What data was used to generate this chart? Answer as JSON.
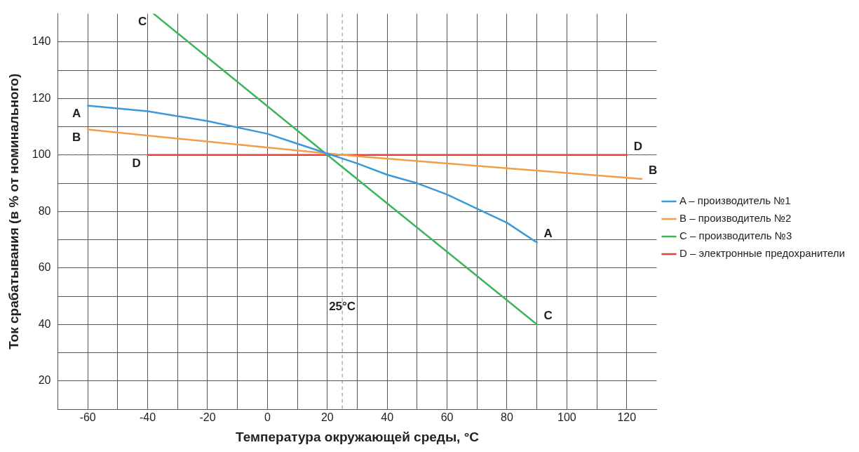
{
  "chart_data": {
    "type": "line",
    "xlabel": "Температура окружающей среды, °C",
    "ylabel": "Ток срабатывания (в % от номинального)",
    "xlim": [
      -70,
      130
    ],
    "ylim": [
      10,
      150
    ],
    "xticks": [
      -60,
      {
        "value": -50,
        "label": null
      },
      -40,
      {
        "value": -30,
        "label": null
      },
      -20,
      {
        "value": -10,
        "label": null
      },
      0,
      {
        "value": 10,
        "label": null
      },
      20,
      {
        "value": 30,
        "label": null
      },
      40,
      {
        "value": 50,
        "label": null
      },
      60,
      {
        "value": 70,
        "label": null
      },
      80,
      {
        "value": 90,
        "label": null
      },
      100,
      {
        "value": 110,
        "label": null
      },
      120
    ],
    "yticks": [
      20,
      {
        "value": 30,
        "label": null
      },
      40,
      {
        "value": 50,
        "label": null
      },
      60,
      {
        "value": 70,
        "label": null
      },
      80,
      {
        "value": 90,
        "label": null
      },
      100,
      {
        "value": 110,
        "label": null
      },
      120,
      {
        "value": 130,
        "label": null
      },
      140
    ],
    "grid": true,
    "legend": "right",
    "marker": "none",
    "line_style": "solid",
    "series": [
      {
        "name": "A – производитель №1",
        "color": "#3a9ad9",
        "x": [
          -60,
          -40,
          -20,
          0,
          10,
          20,
          30,
          40,
          50,
          60,
          70,
          80,
          90
        ],
        "values": [
          117.5,
          115.5,
          112,
          107.5,
          104,
          100.5,
          97,
          93,
          90,
          86,
          81,
          76,
          69
        ]
      },
      {
        "name": "B – производитель №2",
        "color": "#f39c4a",
        "x": [
          -60,
          25,
          125
        ],
        "values": [
          109,
          100,
          91.5
        ]
      },
      {
        "name": "C – производитель №3",
        "color": "#3cb55a",
        "x": [
          -38,
          20,
          90
        ],
        "values": [
          150,
          100,
          40
        ]
      },
      {
        "name": "D – электронные предохранители",
        "color": "#e8413c",
        "x": [
          -40,
          120
        ],
        "values": [
          100,
          100
        ]
      }
    ],
    "ref_lines": [
      {
        "axis": "x",
        "value": 25,
        "label": "25°C",
        "color": "#888888",
        "line_style": "dashed"
      },
      {
        "axis": "y",
        "value": 100,
        "label": null,
        "color": "#888888",
        "line_style": "dashed"
      }
    ],
    "annotations": [
      {
        "text": "A",
        "x": -60,
        "y": 117.5
      },
      {
        "text": "B",
        "x": -60,
        "y": 109
      },
      {
        "text": "C",
        "x": -38,
        "y": 150
      },
      {
        "text": "D",
        "x": -40,
        "y": 100
      },
      {
        "text": "A",
        "x": 90,
        "y": 69
      },
      {
        "text": "B",
        "x": 125,
        "y": 91.5
      },
      {
        "text": "C",
        "x": 90,
        "y": 40
      },
      {
        "text": "D",
        "x": 120,
        "y": 100
      }
    ]
  }
}
